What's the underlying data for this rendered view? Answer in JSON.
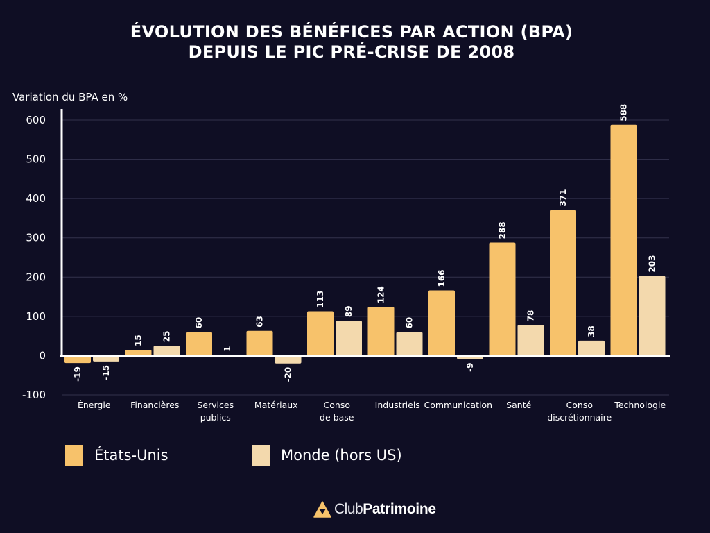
{
  "chart_data": {
    "type": "bar",
    "title": "ÉVOLUTION DES BÉNÉFICES PAR ACTION (BPA) DEPUIS LE PIC PRÉ-CRISE DE 2008",
    "title_lines": [
      "ÉVOLUTION DES BÉNÉFICES PAR ACTION (BPA)",
      "DEPUIS LE PIC PRÉ-CRISE DE 2008"
    ],
    "xlabel": "",
    "ylabel": "Variation du BPA en %",
    "ylim": [
      -100,
      600
    ],
    "yticks": [
      600,
      500,
      400,
      300,
      200,
      100,
      0,
      -100
    ],
    "grid": true,
    "legend_position": "bottom-left",
    "categories": [
      [
        "Énergie"
      ],
      [
        "Financières"
      ],
      [
        "Services",
        "publics"
      ],
      [
        "Matériaux"
      ],
      [
        "Conso",
        "de base"
      ],
      [
        "Industriels"
      ],
      [
        "Communication"
      ],
      [
        "Santé"
      ],
      [
        "Conso",
        "discrétionnaire"
      ],
      [
        "Technologie"
      ]
    ],
    "series": [
      {
        "name": "États-Unis",
        "color": "#f7c26b",
        "values": [
          -19,
          15,
          60,
          63,
          113,
          124,
          166,
          288,
          371,
          588
        ]
      },
      {
        "name": "Monde (hors US)",
        "color": "#f3d9ad",
        "values": [
          -15,
          25,
          1,
          -20,
          89,
          60,
          -9,
          78,
          38,
          203
        ]
      }
    ]
  },
  "brand": {
    "prefix": "Club",
    "name": "Patrimoine",
    "accent": "#f7c26b"
  }
}
